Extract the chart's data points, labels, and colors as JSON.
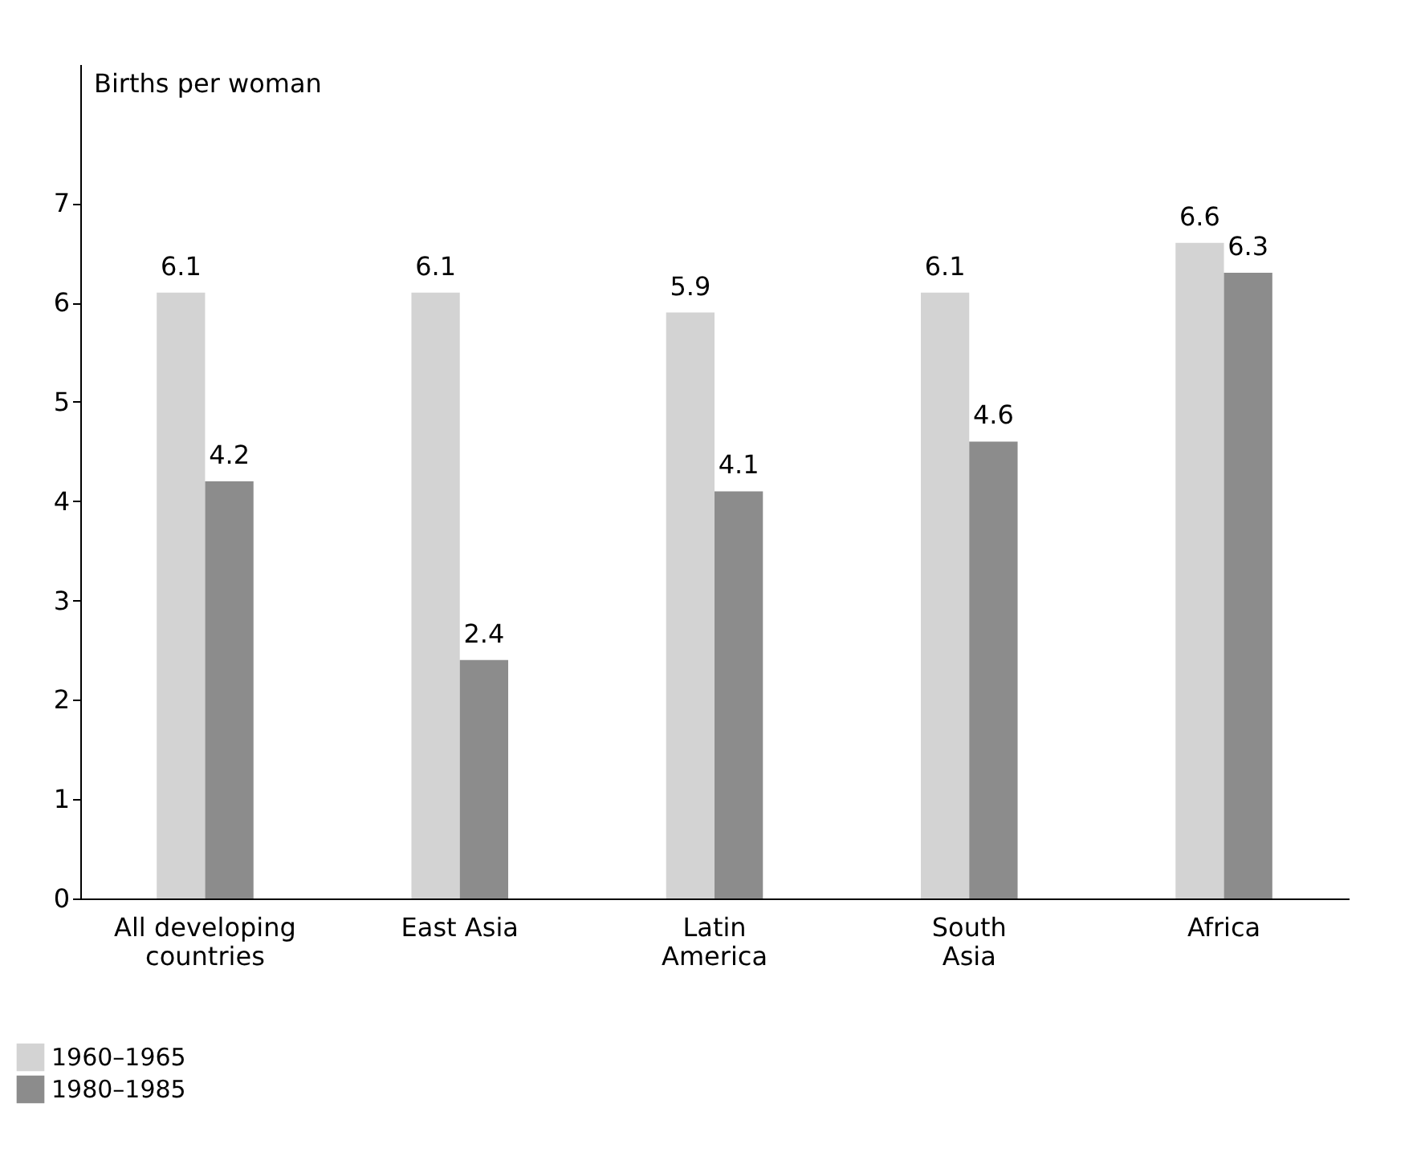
{
  "chart_data": {
    "type": "bar",
    "ylabel": "Births per woman",
    "categories": [
      "All developing\ncountries",
      "East Asia",
      "Latin\nAmerica",
      "South\nAsia",
      "Africa"
    ],
    "series": [
      {
        "name": "1960–1965",
        "color": "#d3d3d3",
        "values": [
          6.1,
          6.1,
          5.9,
          6.1,
          6.6
        ]
      },
      {
        "name": "1980–1985",
        "color": "#8c8c8c",
        "values": [
          4.2,
          2.4,
          4.1,
          4.6,
          6.3
        ]
      }
    ],
    "ylim": [
      0,
      8.4
    ],
    "yticks": [
      0,
      1,
      2,
      3,
      4,
      5,
      6,
      7
    ],
    "grid": false,
    "legend": "bottom left",
    "data_labels": true
  }
}
